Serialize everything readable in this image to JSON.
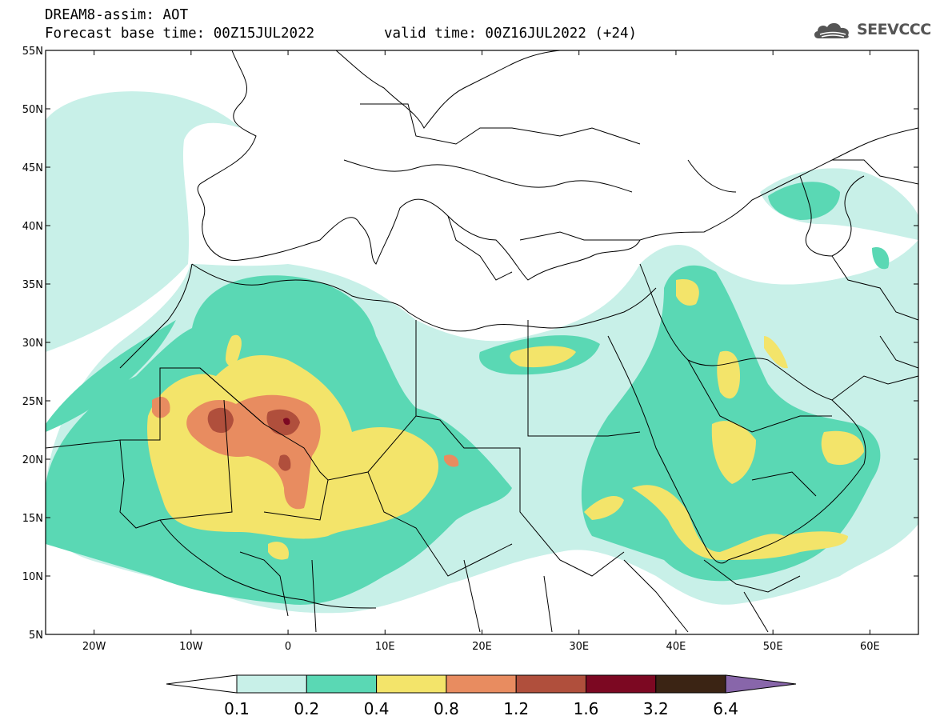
{
  "header": {
    "title": "DREAM8-assim: AOT",
    "base_time": "Forecast base time: 00Z15JUL2022",
    "valid_time": "valid time: 00Z16JUL2022 (+24)",
    "logo_text": "SEEVCCC",
    "logo_icon": "cloud-icon"
  },
  "map": {
    "lon_range": [
      -25,
      65
    ],
    "lat_range": [
      5,
      55
    ],
    "x_ticks": [
      "20W",
      "10W",
      "0",
      "10E",
      "20E",
      "30E",
      "40E",
      "50E",
      "60E"
    ],
    "y_ticks": [
      "55N",
      "50N",
      "45N",
      "40N",
      "35N",
      "30N",
      "25N",
      "20N",
      "15N",
      "10N",
      "5N"
    ]
  },
  "colorbar": {
    "labels": [
      "0.1",
      "0.2",
      "0.4",
      "0.8",
      "1.2",
      "1.6",
      "3.2",
      "6.4"
    ],
    "colors": [
      "#ffffff",
      "#c8f0e8",
      "#5ad8b4",
      "#f3e46a",
      "#e88c60",
      "#b04f3c",
      "#7c0822",
      "#3b2414",
      "#8866aa"
    ]
  }
}
